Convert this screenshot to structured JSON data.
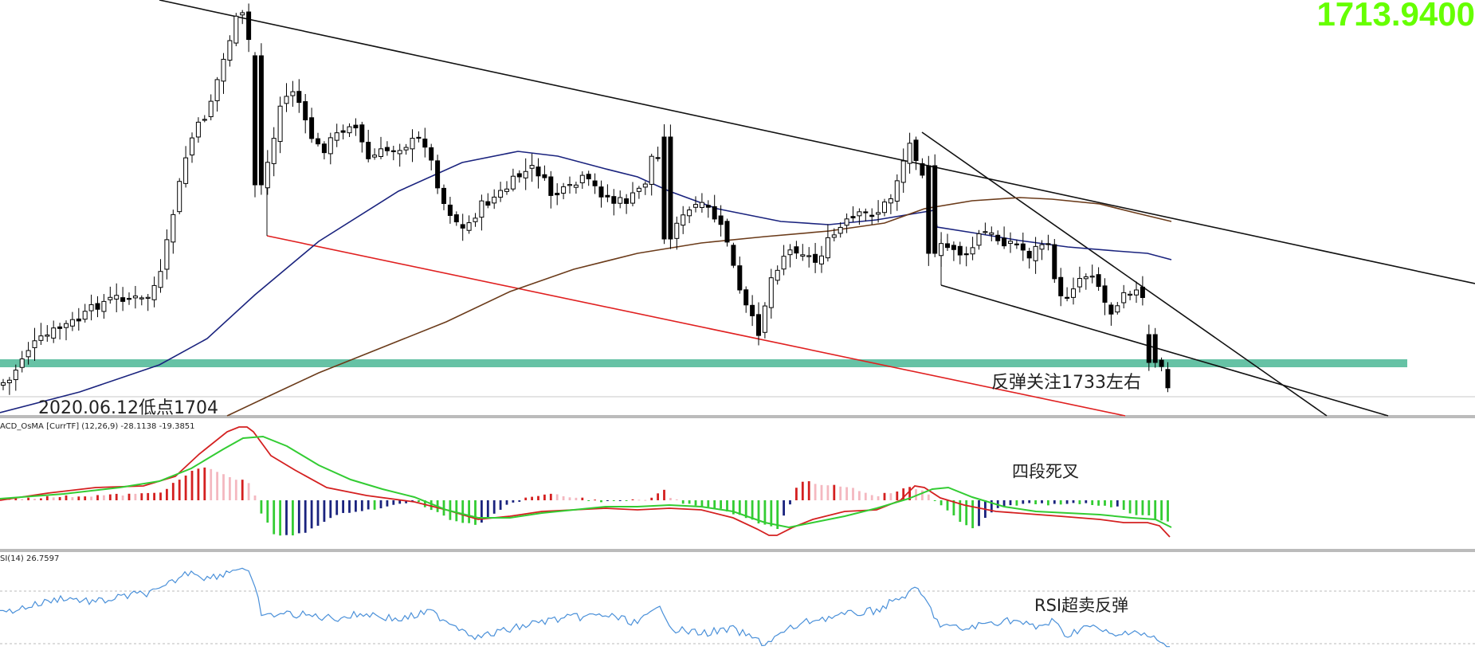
{
  "current_price": "1713.9400",
  "annotations": {
    "low_note": "2020.06.12低点1704",
    "rebound_note": "反弹关注1733左右",
    "macd_note": "四段死叉",
    "rsi_note": "RSI超卖反弹"
  },
  "indicators": {
    "macd_label": "ACD_OsMA [CurrTF] (12,26,9) -28.1138 -19.3851",
    "rsi_label": "SI(14) 26.7597"
  },
  "colors": {
    "support_zone": "#66c2a5",
    "ma_short": "#1a237e",
    "ma_long": "#6b3b1a",
    "trend_red": "#e02020",
    "macd_red": "#d42020",
    "macd_pink": "#f4b8c0",
    "macd_green": "#33cc33",
    "macd_navy": "#1a237e",
    "rsi_line": "#4a90d9",
    "price_label": "#66ff00"
  },
  "chart_data": [
    {
      "type": "candlestick",
      "title": "",
      "support_zone_level": 1733,
      "reference_low": 1704,
      "series": [
        {
          "name": "",
          "role": "short moving average"
        },
        {
          "name": "",
          "role": "long moving average"
        }
      ]
    },
    {
      "type": "bar",
      "title": "ACD_OsMA [CurrTF] (12,26,9)",
      "values_shown": [
        -28.1138,
        -19.3851
      ],
      "series": [
        {
          "name": "",
          "role": "histogram"
        },
        {
          "name": "",
          "role": "MACD line"
        },
        {
          "name": "",
          "role": "signal line"
        }
      ]
    },
    {
      "type": "line",
      "title": "SI(14)",
      "last_value": 26.7597
    }
  ]
}
